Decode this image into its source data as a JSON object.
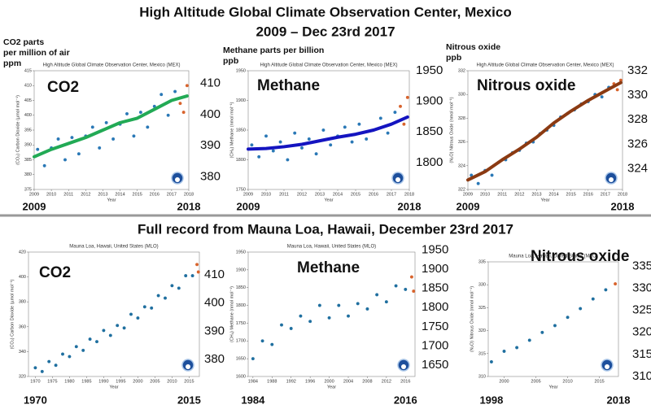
{
  "header": {
    "title": "High Altitude Global Climate Observation Center, Mexico",
    "subtitle": "2009 – Dec 23rd 2017"
  },
  "section_title": "Full record from Mauna Loa, Hawaii,  December 23rd 2017",
  "chart_data": [
    {
      "type": "scatter",
      "title": "High Altitude Global Climate Observation Center, Mexico (MEX)",
      "label": "CO2",
      "unit_label": [
        "CO2 parts",
        "per million of air",
        "ppm"
      ],
      "x_label": "Year",
      "y_label": "(CO₂) Carbon Dioxide (µmol mol⁻¹)",
      "xlim": [
        2009,
        2018
      ],
      "xticks": [
        2009,
        2010,
        2011,
        2012,
        2013,
        2014,
        2015,
        2016,
        2017,
        2018
      ],
      "ylim": [
        375,
        415
      ],
      "yticks": [
        375,
        380,
        385,
        390,
        395,
        400,
        405,
        410,
        415
      ],
      "y2lim": [
        376,
        414
      ],
      "y2ticks": [
        380,
        390,
        400,
        410
      ],
      "x2ticks": [
        2009,
        2018
      ],
      "points": {
        "color": "#2a78b6",
        "x": [
          2009.2,
          2009.6,
          2010.0,
          2010.4,
          2010.8,
          2011.2,
          2011.6,
          2012.0,
          2012.4,
          2012.8,
          2013.2,
          2013.6,
          2014.0,
          2014.4,
          2014.8,
          2015.2,
          2015.6,
          2016.0,
          2016.4,
          2016.8,
          2017.2
        ],
        "values": [
          388.5,
          383,
          389,
          392,
          385,
          392.5,
          387,
          393,
          396,
          389,
          397.5,
          392,
          397,
          400.5,
          393,
          401,
          396,
          403,
          407,
          400,
          408
        ]
      },
      "recent": {
        "color": "#d8632c",
        "x": [
          2017.5,
          2017.7,
          2017.9
        ],
        "values": [
          404,
          401,
          410
        ]
      },
      "trend": {
        "color": "#22aa55",
        "x": [
          2009,
          2010,
          2011,
          2012,
          2013,
          2014,
          2015,
          2016,
          2017,
          2017.9
        ],
        "values": [
          386,
          388.5,
          390.5,
          392.5,
          395,
          397.5,
          399,
          402,
          405,
          406.5
        ]
      }
    },
    {
      "type": "scatter",
      "title": "High Altitude Global Climate Observation Center, Mexico (MEX)",
      "label": "Methane",
      "unit_label": [
        "Methane parts per billion",
        "ppb"
      ],
      "x_label": "Year",
      "y_label": "(CH₄) Methane (nmol mol⁻¹)",
      "xlim": [
        2009,
        2018
      ],
      "xticks": [
        2009,
        2010,
        2011,
        2012,
        2013,
        2014,
        2015,
        2016,
        2017,
        2018
      ],
      "ylim": [
        1750,
        1950
      ],
      "yticks": [
        1750,
        1800,
        1850,
        1900,
        1950
      ],
      "y2lim": [
        1756,
        1950
      ],
      "y2ticks": [
        1800,
        1850,
        1900,
        1950
      ],
      "x2ticks": [
        2009,
        2018
      ],
      "points": {
        "color": "#2a78b6",
        "x": [
          2009.2,
          2009.6,
          2010.0,
          2010.4,
          2010.8,
          2011.2,
          2011.6,
          2012.0,
          2012.4,
          2012.8,
          2013.2,
          2013.6,
          2014.0,
          2014.4,
          2014.8,
          2015.2,
          2015.6,
          2016.0,
          2016.4,
          2016.8,
          2017.2
        ],
        "values": [
          1825,
          1805,
          1840,
          1815,
          1830,
          1800,
          1845,
          1820,
          1835,
          1810,
          1850,
          1825,
          1840,
          1855,
          1830,
          1860,
          1835,
          1850,
          1870,
          1845,
          1880
        ]
      },
      "recent": {
        "color": "#d8632c",
        "x": [
          2017.5,
          2017.7,
          2017.9
        ],
        "values": [
          1890,
          1860,
          1905
        ]
      },
      "trend": {
        "color": "#1414c0",
        "x": [
          2009,
          2010,
          2011,
          2012,
          2013,
          2014,
          2015,
          2016,
          2017,
          2017.9
        ],
        "values": [
          1818,
          1819,
          1822,
          1826,
          1832,
          1838,
          1843,
          1850,
          1860,
          1872
        ]
      }
    },
    {
      "type": "scatter",
      "title": "High Altitude Global Climate Observation Center, Mexico (MEX)",
      "label": "Nitrous oxide",
      "unit_label": [
        "Nitrous oxide",
        "ppb"
      ],
      "x_label": "Year",
      "y_label": "(N₂O) Nitrous Oxide (nmol mol⁻¹)",
      "xlim": [
        2009,
        2018
      ],
      "xticks": [
        2009,
        2010,
        2011,
        2012,
        2013,
        2014,
        2015,
        2016,
        2017,
        2018
      ],
      "ylim": [
        322,
        332
      ],
      "yticks": [
        322,
        324,
        326,
        328,
        330,
        332
      ],
      "y2lim": [
        322.3,
        332
      ],
      "y2ticks": [
        324,
        326,
        328,
        330,
        332
      ],
      "x2ticks": [
        2009,
        2018
      ],
      "points": {
        "color": "#2a78b6",
        "x": [
          2009.2,
          2009.6,
          2010.0,
          2010.4,
          2010.8,
          2011.2,
          2011.6,
          2012.0,
          2012.4,
          2012.8,
          2013.2,
          2013.6,
          2014.0,
          2014.4,
          2014.8,
          2015.2,
          2015.6,
          2016.0,
          2016.4,
          2016.8,
          2017.2
        ],
        "values": [
          323.2,
          322.5,
          323.6,
          323.2,
          324.3,
          324.5,
          325.1,
          325.3,
          325.9,
          326.0,
          326.7,
          327.0,
          327.4,
          328.1,
          328.4,
          328.7,
          329.2,
          329.4,
          330.0,
          329.8,
          330.6
        ]
      },
      "recent": {
        "color": "#d8632c",
        "x": [
          2017.5,
          2017.7,
          2017.9
        ],
        "values": [
          330.9,
          330.4,
          331.2
        ]
      },
      "trend": {
        "color": "#8b3a12",
        "x": [
          2009,
          2010,
          2011,
          2012,
          2013,
          2014,
          2015,
          2016,
          2017,
          2017.9
        ],
        "values": [
          322.8,
          323.5,
          324.5,
          325.4,
          326.4,
          327.6,
          328.6,
          329.5,
          330.3,
          331
        ]
      }
    },
    {
      "type": "scatter",
      "title": "Mauna Loa, Hawaii, United States (MLO)",
      "label": "CO2",
      "x_label": "Year",
      "y_label": "(CO₂) Carbon Dioxide (µmol mol⁻¹)",
      "xlim": [
        1968,
        2018
      ],
      "xticks": [
        1970,
        1975,
        1980,
        1985,
        1990,
        1995,
        2000,
        2005,
        2010,
        2015
      ],
      "ylim": [
        320,
        420
      ],
      "yticks": [
        320,
        340,
        360,
        380,
        400,
        420
      ],
      "y2lim": [
        374,
        418
      ],
      "y2ticks": [
        380,
        390,
        400,
        410
      ],
      "x2ticks": [
        1970,
        2015
      ],
      "points": {
        "color": "#1f6f9f",
        "x": [
          1970,
          1972,
          1974,
          1976,
          1978,
          1980,
          1982,
          1984,
          1986,
          1988,
          1990,
          1992,
          1994,
          1996,
          1998,
          2000,
          2002,
          2004,
          2006,
          2008,
          2010,
          2012,
          2014,
          2016
        ],
        "values": [
          327,
          324,
          332,
          329,
          338,
          336,
          344,
          341,
          350,
          348,
          357,
          353,
          361,
          359,
          370,
          367,
          376,
          375,
          385,
          383,
          393,
          391,
          401,
          401
        ]
      },
      "recent": {
        "color": "#d8632c",
        "x": [
          2017.3,
          2017.7
        ],
        "values": [
          410,
          404
        ]
      }
    },
    {
      "type": "scatter",
      "title": "Mauna Loa, Hawaii, United States (MLO)",
      "label": "Methane",
      "x_label": "Year",
      "y_label": "(CH₄) Methane (nmol mol⁻¹)",
      "xlim": [
        1983,
        2018
      ],
      "xticks": [
        1984,
        1988,
        1992,
        1996,
        2000,
        2004,
        2008,
        2012,
        2016
      ],
      "ylim": [
        1600,
        1950
      ],
      "yticks": [
        1600,
        1650,
        1700,
        1750,
        1800,
        1850,
        1900,
        1950
      ],
      "y2lim": [
        1620,
        1945
      ],
      "y2ticks": [
        1650,
        1700,
        1750,
        1800,
        1850,
        1900,
        1950
      ],
      "x2ticks": [
        1984,
        2016
      ],
      "points": {
        "color": "#1f6f9f",
        "x": [
          1984,
          1986,
          1988,
          1990,
          1992,
          1994,
          1996,
          1998,
          2000,
          2002,
          2004,
          2006,
          2008,
          2010,
          2012,
          2014,
          2016
        ],
        "values": [
          1650,
          1700,
          1690,
          1745,
          1735,
          1770,
          1755,
          1800,
          1765,
          1800,
          1770,
          1805,
          1790,
          1830,
          1810,
          1855,
          1845
        ]
      },
      "recent": {
        "color": "#d8632c",
        "x": [
          2017.3,
          2017.7
        ],
        "values": [
          1880,
          1840
        ]
      }
    },
    {
      "type": "scatter",
      "title": "Mauna Loa, Hawaii, United States (MLO)",
      "label": "Nitrous oxide",
      "x_label": "Year",
      "y_label": "(N₂O) Nitrous Oxide (nmol mol⁻¹)",
      "xlim": [
        1997.5,
        2018
      ],
      "xticks": [
        2000,
        2005,
        2010,
        2015
      ],
      "ylim": [
        310,
        335
      ],
      "yticks": [
        310,
        315,
        320,
        325,
        330,
        335
      ],
      "y2lim": [
        310,
        336
      ],
      "y2ticks": [
        310,
        315,
        320,
        325,
        330,
        335
      ],
      "x2ticks": [
        1998,
        2018
      ],
      "points": {
        "color": "#1f6f9f",
        "x": [
          1998,
          2000,
          2002,
          2004,
          2006,
          2008,
          2010,
          2012,
          2014,
          2016
        ],
        "values": [
          313.2,
          315.5,
          316.3,
          317.9,
          319.6,
          321.1,
          322.9,
          324.8,
          326.9,
          328.9
        ]
      },
      "recent": {
        "color": "#d8632c",
        "x": [
          2017.5
        ],
        "values": [
          330.2
        ]
      }
    }
  ]
}
